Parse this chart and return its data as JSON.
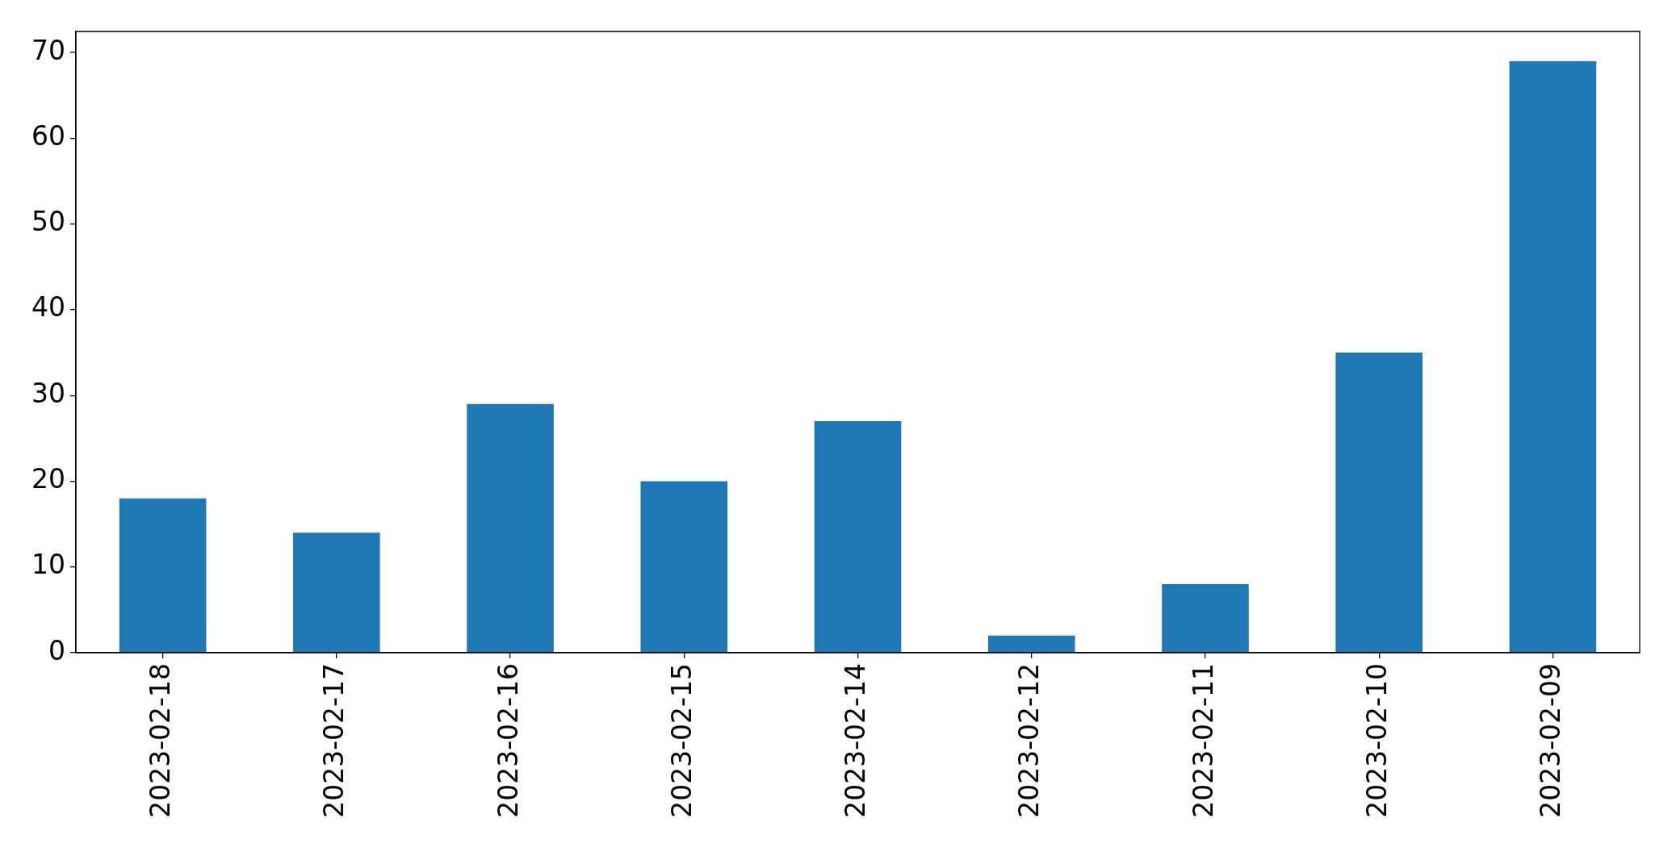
{
  "chart_data": {
    "type": "bar",
    "categories": [
      "2023-02-18",
      "2023-02-17",
      "2023-02-16",
      "2023-02-15",
      "2023-02-14",
      "2023-02-12",
      "2023-02-11",
      "2023-02-10",
      "2023-02-09"
    ],
    "values": [
      18,
      14,
      29,
      20,
      27,
      2,
      8,
      35,
      69
    ],
    "color": "#1f77b4",
    "ylim": [
      0,
      72.45
    ],
    "yticks": [
      0,
      10,
      20,
      30,
      40,
      50,
      60,
      70
    ],
    "grid": false
  }
}
